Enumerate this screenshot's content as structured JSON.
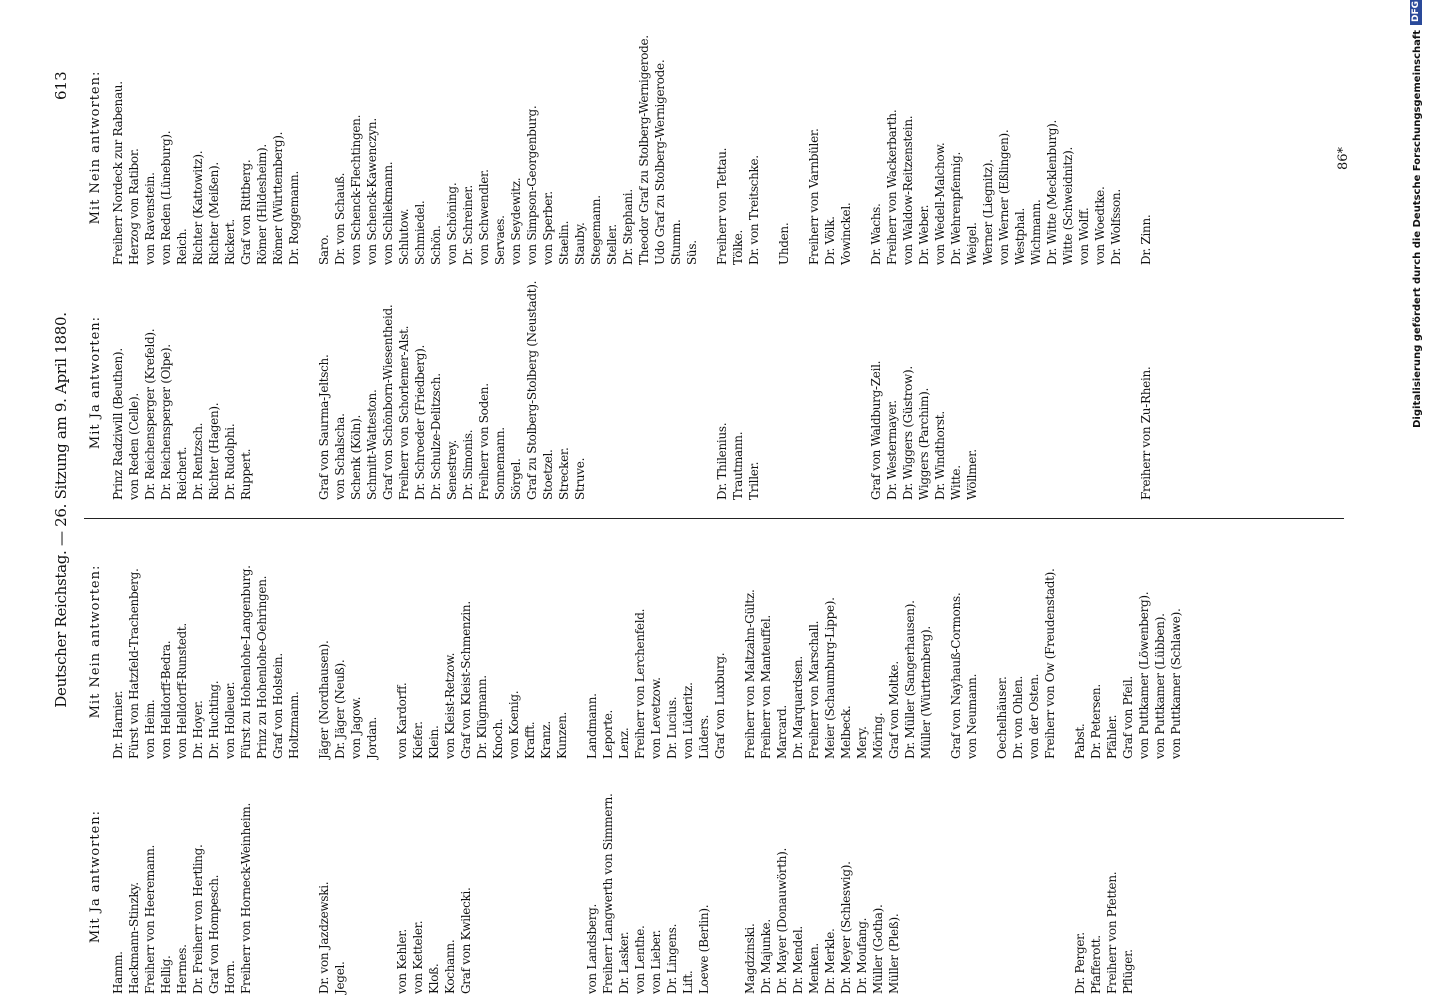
{
  "header": {
    "title": "Deutscher Reichstag. — 26. Sitzung am 9. April 1880.",
    "page_number": "613"
  },
  "halves": [
    {
      "headings": {
        "ja": "Mit Ja antworten:",
        "nein": "Mit Nein antworten:"
      },
      "sections": [
        {
          "ja": [
            "Hamm.",
            "Hackmann-Stinzky.",
            "Freiherr von Heeremann.",
            "Hellig.",
            "Hermes.",
            "Dr. Freiherr von Hertling.",
            "Graf von Hompesch.",
            "Horn.",
            "Freiherr von Horneck-Weinheim."
          ],
          "nein": [
            "Dr. Harnier.",
            "Fürst von Hatzfeld-Trachenberg.",
            "von Heim.",
            "von Helldorff-Bedra.",
            "von Helldorff-Runstedt.",
            "Dr. Hoyer.",
            "Dr. Huchting.",
            "von Holleuer.",
            "Fürst zu Hohenlohe-Langenburg.",
            "Prinz zu Hohenlohe-Oehringen.",
            "Graf von Holstein.",
            "Holtzmann."
          ]
        },
        {
          "ja": [
            "Dr. von Jazdzewski.",
            "Jegel."
          ],
          "nein": [
            "Jäger (Nordhausen).",
            "Dr. Jäger (Neuß).",
            "von Jagow.",
            "Jordan."
          ]
        },
        {
          "ja": [
            "von Kehler.",
            "von Ketteler.",
            "Kloß.",
            "Kochann.",
            "Graf von Kwilecki."
          ],
          "nein": [
            "von Kardorff.",
            "Kiefer.",
            "Klein.",
            "von Kleist-Retzow.",
            "Graf von Kleist-Schmenzin.",
            "Dr. Klügmann.",
            "Knoch.",
            "von Koenig.",
            "Krafft.",
            "Kranz.",
            "Kunzen."
          ]
        },
        {
          "ja": [
            "von Landsberg.",
            "Freiherr Langwerth von Simmern.",
            "Dr. Lasker.",
            "von Lenthe.",
            "von Lieber.",
            "Dr. Lingens.",
            "Lift.",
            "Loewe (Berlin)."
          ],
          "nein": [
            "Landmann.",
            "Leporte.",
            "Lenz.",
            "Freiherr von Lerchenfeld.",
            "von Levetzow.",
            "Dr. Lucius.",
            "von Lüderitz.",
            "Lüders.",
            "Graf von Luxburg."
          ]
        },
        {
          "ja": [
            "Magdzinski.",
            "Dr. Majunke.",
            "Dr. Mayer (Donauwörth).",
            "Dr. Mendel.",
            "Menken.",
            "Dr. Merkle.",
            "Dr. Meyer (Schleswig).",
            "Dr. Moufang.",
            "Müller (Gotha).",
            "Müller (Pleß)."
          ],
          "nein": [
            "Freiherr von Maltzahn-Gültz.",
            "Freiherr von Manteuffel.",
            "Marcard.",
            "Dr. Marquardsen.",
            "Freiherr von Marschall.",
            "Meier (Schaumburg-Lippe).",
            "Melbeck.",
            "Mery.",
            "Möring.",
            "Graf von Moltke.",
            "Dr. Müller (Sangerhausen).",
            "Müller (Württemberg)."
          ]
        },
        {
          "nein": [
            "Graf von Nayhauß-Cormons.",
            "von Neumann."
          ]
        },
        {
          "nein": [
            "Oechelhäuser.",
            "Dr. von Ohlen.",
            "von der Osten.",
            "Freiherr von Ow (Freudenstadt)."
          ]
        },
        {
          "ja": [
            "Dr. Perger.",
            "Pfafferott.",
            "Freiherr von Pfetten.",
            "Pflüger."
          ],
          "nein": [
            "Pabst.",
            "Dr. Petersen.",
            "Pfähler.",
            "Graf von Pfeil.",
            "von Puttkamer (Löwenberg).",
            "von Puttkamer (Lübben).",
            "von Puttkamer (Schlawe)."
          ]
        }
      ]
    },
    {
      "headings": {
        "ja": "Mit Ja antworten:",
        "nein": "Mit Nein antworten:"
      },
      "sections": [
        {
          "ja": [
            "Prinz Radziwill (Beuthen).",
            "von Reden (Celle).",
            "Dr. Reichensperger (Krefeld).",
            "Dr. Reichensperger (Olpe).",
            "Reichert.",
            "Dr. Rentzsch.",
            "Richter (Hagen).",
            "Dr. Rudolphi.",
            "Ruppert."
          ],
          "nein": [
            "Freiherr Nordeck zur Rabenau.",
            "Herzog von Ratibor.",
            "von Ravenstein.",
            "von Reden (Lüneburg).",
            "Reich.",
            "Richter (Kattowitz).",
            "Richter (Meißen).",
            "Rickert.",
            "Graf von Rittberg.",
            "Römer (Hildesheim).",
            "Römer (Württemberg).",
            "Dr. Roggemann."
          ]
        },
        {
          "ja": [
            "Graf von Saurma-Jeltsch.",
            "von Schalscha.",
            "Schenk (Köln).",
            "Schmitt-Watteston.",
            "Graf von Schönborn-Wiesentheid.",
            "Freiherr von Schorlemer-Alst.",
            "Dr. Schroeder (Friedberg).",
            "Dr. Schulze-Delitzsch.",
            "Senestrey.",
            "Dr. Simonis.",
            "Freiherr von Soden.",
            "Sonnemann.",
            "Sörgel.",
            "Graf zu Stolberg-Stolberg (Neustadt).",
            "Stoetzel.",
            "Strecker.",
            "Struve."
          ],
          "nein": [
            "Saro.",
            "Dr. von Schauß.",
            "von Schenck-Flechtingen.",
            "von Schenck-Kawenczyn.",
            "von Schliekmann.",
            "Schlutow.",
            "Schmiedel.",
            "Schön.",
            "von Schöning.",
            "Dr. Schreiner.",
            "von Schwendler.",
            "Servaes.",
            "von Seydewitz.",
            "von Simpson-Georgenburg.",
            "von Sperber.",
            "Staelin.",
            "Stauby.",
            "Stegemann.",
            "Steller.",
            "Dr. Stephani.",
            "Theodor Graf zu Stolberg-Wernigerode.",
            "Udo Graf zu Stolberg-Wernigerode.",
            "Stumm.",
            "Süs."
          ]
        },
        {
          "ja": [
            "Dr. Thilenius.",
            "Trautmann.",
            "Triller."
          ],
          "nein": [
            "Freiherr von Tettau.",
            "Tölke.",
            "Dr. von Treitschke."
          ]
        },
        {
          "nein": [
            "Uhden."
          ]
        },
        {
          "nein": [
            "Freiherr von Varnbüler.",
            "Dr. Völk.",
            "Vowinckel."
          ]
        },
        {
          "ja": [
            "Graf von Waldburg-Zeil.",
            "Dr. Westermayer.",
            "Dr. Wiggers (Güstrow).",
            "Wiggers (Parchim).",
            "Dr. Windthorst.",
            "Witte.",
            "Wöllmer."
          ],
          "nein": [
            "Dr. Wachs.",
            "Freiherr von Wackerbarth.",
            "von Waldow-Reitzenstein.",
            "Dr. Weber.",
            "von Wedell-Malchow.",
            "Dr. Wehrenpfennig.",
            "Weigel.",
            "Werner (Liegnitz).",
            "von Werner (Eßlingen).",
            "Westphal.",
            "Wichmann.",
            "Dr. Witte (Mecklenburg).",
            "Witte (Schweidnitz).",
            "von Wolff.",
            "von Woedtke.",
            "Dr. Wolfsson."
          ]
        },
        {
          "ja": [
            "Freiherr von Zu-Rhein."
          ],
          "nein": [
            "Dr. Zinn."
          ]
        }
      ]
    }
  ],
  "signature": "86*",
  "footer": {
    "credit": "Digitalisierung gefördert durch die Deutsche Forschungsgemeinschaft",
    "logo": "DFG"
  }
}
